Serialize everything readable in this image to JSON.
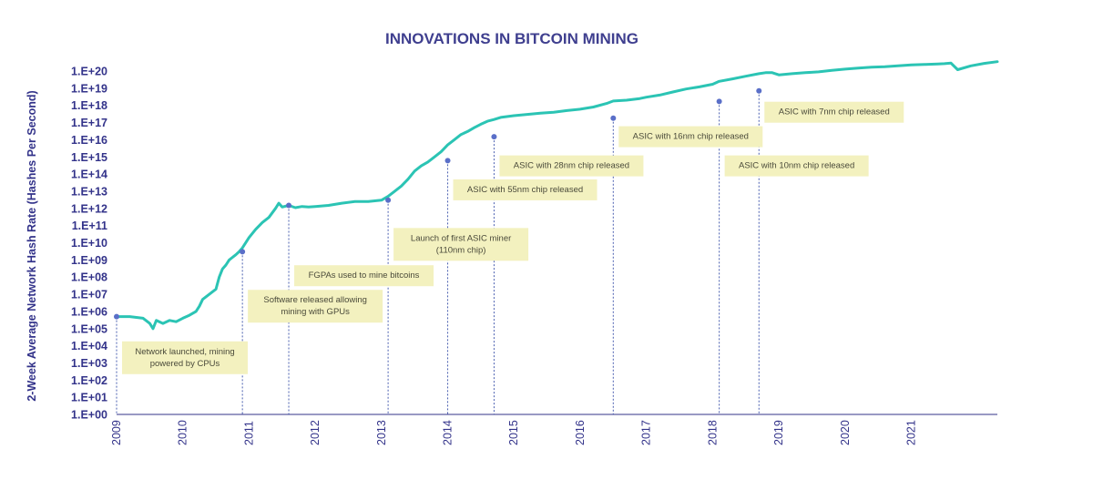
{
  "chart_data": {
    "type": "line",
    "title": "INNOVATIONS IN BITCOIN MINING",
    "ylabel": "2-Week Average Network Hash Rate (Hashes Per Second)",
    "xlabel": "",
    "y_scale": "log10",
    "ylim": [
      1,
      1e+20
    ],
    "xlim": [
      2009.0,
      2022.3
    ],
    "y_ticks": [
      "1.E+00",
      "1.E+01",
      "1.E+02",
      "1.E+03",
      "1.E+04",
      "1.E+05",
      "1.E+06",
      "1.E+07",
      "1.E+08",
      "1.E+09",
      "1.E+10",
      "1.E+11",
      "1.E+12",
      "1.E+13",
      "1.E+14",
      "1.E+15",
      "1.E+16",
      "1.E+17",
      "1.E+18",
      "1.E+19",
      "1.E+20"
    ],
    "x_ticks": [
      "2009",
      "2010",
      "2011",
      "2012",
      "2013",
      "2014",
      "2015",
      "2016",
      "2017",
      "2018",
      "2019",
      "2020",
      "2021"
    ],
    "grid": false,
    "line_color": "#2bc4b4",
    "series": [
      {
        "x": [
          2009.0,
          2009.2,
          2009.4,
          2009.5,
          2009.55,
          2009.6,
          2009.7,
          2009.8,
          2009.9,
          2010.0,
          2010.1,
          2010.2,
          2010.25,
          2010.3,
          2010.4,
          2010.5,
          2010.55,
          2010.6,
          2010.65,
          2010.7,
          2010.8,
          2010.85,
          2010.9,
          2011.0,
          2011.1,
          2011.2,
          2011.3,
          2011.4,
          2011.45,
          2011.5,
          2011.6,
          2011.7,
          2011.8,
          2011.9,
          2012.0,
          2012.2,
          2012.4,
          2012.6,
          2012.8,
          2013.0,
          2013.1,
          2013.2,
          2013.3,
          2013.4,
          2013.5,
          2013.6,
          2013.7,
          2013.8,
          2013.9,
          2014.0,
          2014.1,
          2014.2,
          2014.3,
          2014.4,
          2014.5,
          2014.6,
          2014.7,
          2014.8,
          2015.0,
          2015.2,
          2015.4,
          2015.6,
          2015.8,
          2016.0,
          2016.2,
          2016.4,
          2016.5,
          2016.7,
          2016.9,
          2017.0,
          2017.2,
          2017.4,
          2017.6,
          2017.8,
          2018.0,
          2018.1,
          2018.3,
          2018.5,
          2018.7,
          2018.8,
          2018.9,
          2019.0,
          2019.2,
          2019.4,
          2019.6,
          2019.8,
          2020.0,
          2020.2,
          2020.4,
          2020.6,
          2020.8,
          2021.0,
          2021.2,
          2021.4,
          2021.5,
          2021.6,
          2021.7,
          2021.9,
          2022.1,
          2022.3
        ],
        "values": [
          500000.0,
          500000.0,
          400000.0,
          200000.0,
          100000.0,
          300000.0,
          200000.0,
          300000.0,
          250000.0,
          400000.0,
          600000.0,
          1000000.0,
          2000000.0,
          5000000.0,
          10000000.0,
          20000000.0,
          100000000.0,
          300000000.0,
          500000000.0,
          1000000000.0,
          2000000000.0,
          3000000000.0,
          5000000000.0,
          20000000000.0,
          60000000000.0,
          150000000000.0,
          300000000000.0,
          1000000000000.0,
          2000000000000.0,
          1200000000000.0,
          1500000000000.0,
          1100000000000.0,
          1300000000000.0,
          1200000000000.0,
          1300000000000.0,
          1500000000000.0,
          2000000000000.0,
          2500000000000.0,
          2500000000000.0,
          3000000000000.0,
          5000000000000.0,
          10000000000000.0,
          20000000000000.0,
          50000000000000.0,
          150000000000000.0,
          300000000000000.0,
          500000000000000.0,
          1000000000000000.0,
          2000000000000000.0,
          5000000000000000.0,
          1e+16,
          2e+16,
          3e+16,
          5e+16,
          8e+16,
          1.2e+17,
          1.5e+17,
          2e+17,
          2.5e+17,
          3e+17,
          3.5e+17,
          4e+17,
          5e+17,
          6e+17,
          8e+17,
          1.3e+18,
          1.8e+18,
          2e+18,
          2.5e+18,
          3e+18,
          4e+18,
          6e+18,
          9e+18,
          1.2e+19,
          1.7e+19,
          2.5e+19,
          3.5e+19,
          5e+19,
          7e+19,
          8e+19,
          8e+19,
          6e+19,
          7e+19,
          8e+19,
          9e+19,
          1.1e+20,
          1.3e+20,
          1.5e+20,
          1.7e+20,
          1.8e+20,
          2e+20,
          2.3e+20,
          2.4e+20,
          2.6e+20,
          2.7e+20,
          2.9e+20,
          1.2e+20,
          2e+20,
          2.8e+20,
          3.5e+20
        ]
      }
    ],
    "annotations": [
      {
        "x": 2009.0,
        "y": 500000.0,
        "lines": [
          "Network launched, mining",
          "powered by CPUs"
        ],
        "box_y": 2000.0
      },
      {
        "x": 2010.9,
        "y": 3000000000.0,
        "lines": [
          "Software released allowing",
          "mining with GPUs"
        ],
        "box_y": 2000000.0
      },
      {
        "x": 2011.6,
        "y": 1500000000000.0,
        "lines": [
          "FGPAs used to mine bitcoins"
        ],
        "box_y": 120000000.0
      },
      {
        "x": 2013.1,
        "y": 3000000000000.0,
        "lines": [
          "Launch of first ASIC miner",
          "(110nm chip)"
        ],
        "box_y": 8000000000.0
      },
      {
        "x": 2014.0,
        "y": 600000000000000.0,
        "lines": [
          "ASIC with 55nm chip released"
        ],
        "box_y": 12000000000000.0
      },
      {
        "x": 2014.7,
        "y": 1.5e+16,
        "lines": [
          "ASIC with 28nm chip released"
        ],
        "box_y": 300000000000000.0
      },
      {
        "x": 2016.5,
        "y": 1.8e+17,
        "lines": [
          "ASIC with 16nm chip released"
        ],
        "box_y": 1.5e+16
      },
      {
        "x": 2018.1,
        "y": 1.7e+18,
        "lines": [
          "ASIC with 10nm chip released"
        ],
        "box_y": 300000000000000.0
      },
      {
        "x": 2018.7,
        "y": 7e+18,
        "lines": [
          "ASIC with 7nm chip released"
        ],
        "box_y": 4e+17
      }
    ]
  }
}
